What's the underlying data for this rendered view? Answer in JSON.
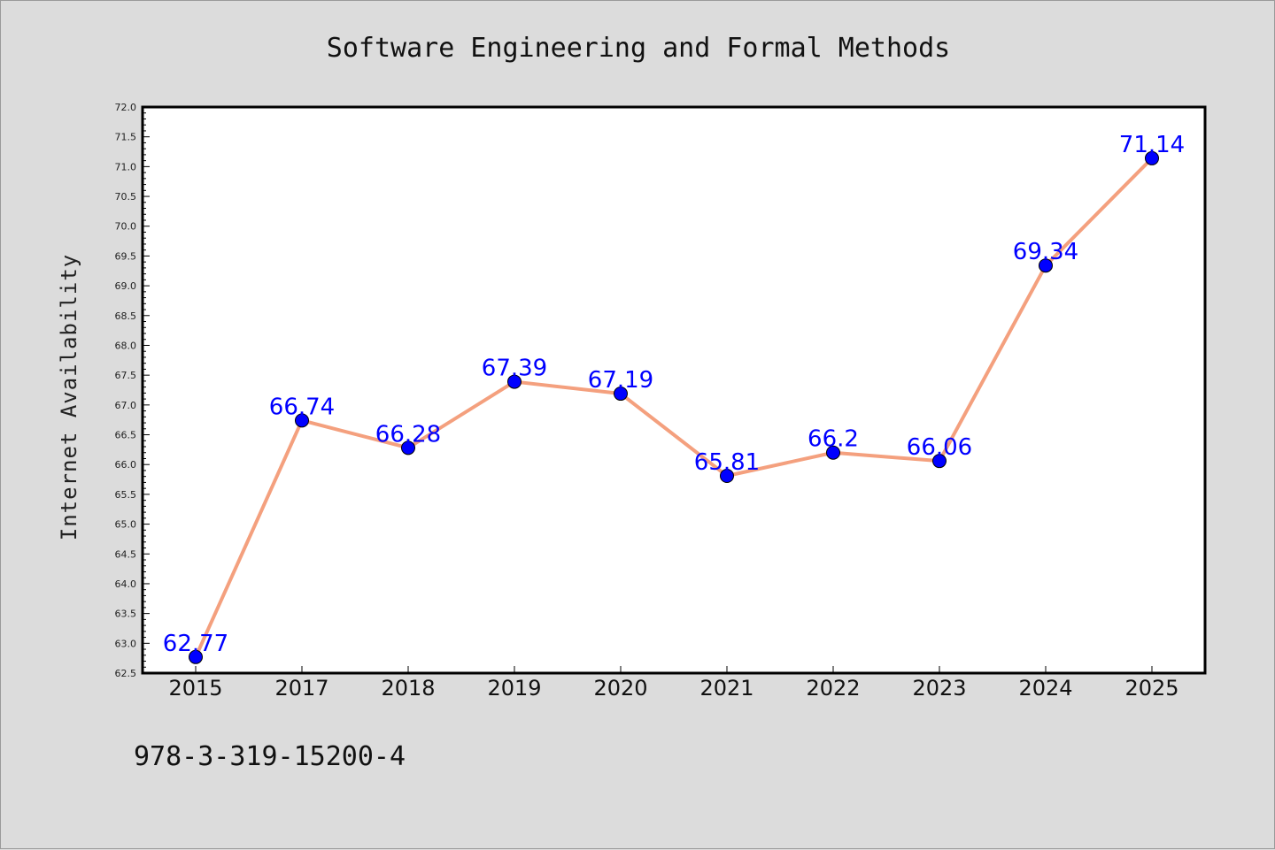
{
  "chart_data": {
    "type": "line",
    "title": "Software Engineering and Formal Methods",
    "xlabel": "",
    "ylabel": "Internet Availability",
    "categories": [
      "2015",
      "2017",
      "2018",
      "2019",
      "2020",
      "2021",
      "2022",
      "2023",
      "2024",
      "2025"
    ],
    "series": [
      {
        "values": [
          62.77,
          66.74,
          66.28,
          67.39,
          67.19,
          65.81,
          66.2,
          66.06,
          69.34,
          71.14
        ],
        "data_labels": [
          "62.77",
          "66.74",
          "66.28",
          "67.39",
          "67.19",
          "65.81",
          "66.2",
          "66.06",
          "69.34",
          "71.14"
        ]
      }
    ],
    "ylim": [
      62.5,
      72.0
    ],
    "yticks": [
      "62.5",
      "63.0",
      "63.5",
      "64.0",
      "64.5",
      "65.0",
      "65.5",
      "66.0",
      "66.5",
      "67.0",
      "67.5",
      "68.0",
      "68.5",
      "69.0",
      "69.5",
      "70.0",
      "70.5",
      "71.0",
      "71.5",
      "72.0"
    ],
    "grid": false,
    "line_color": "#f4a07e",
    "marker_color": "#0000ff",
    "label_color": "#0000ff",
    "plot_background": "#ffffff",
    "figure_background": "#dcdcdc"
  },
  "footer": {
    "isbn": "978-3-319-15200-4"
  }
}
